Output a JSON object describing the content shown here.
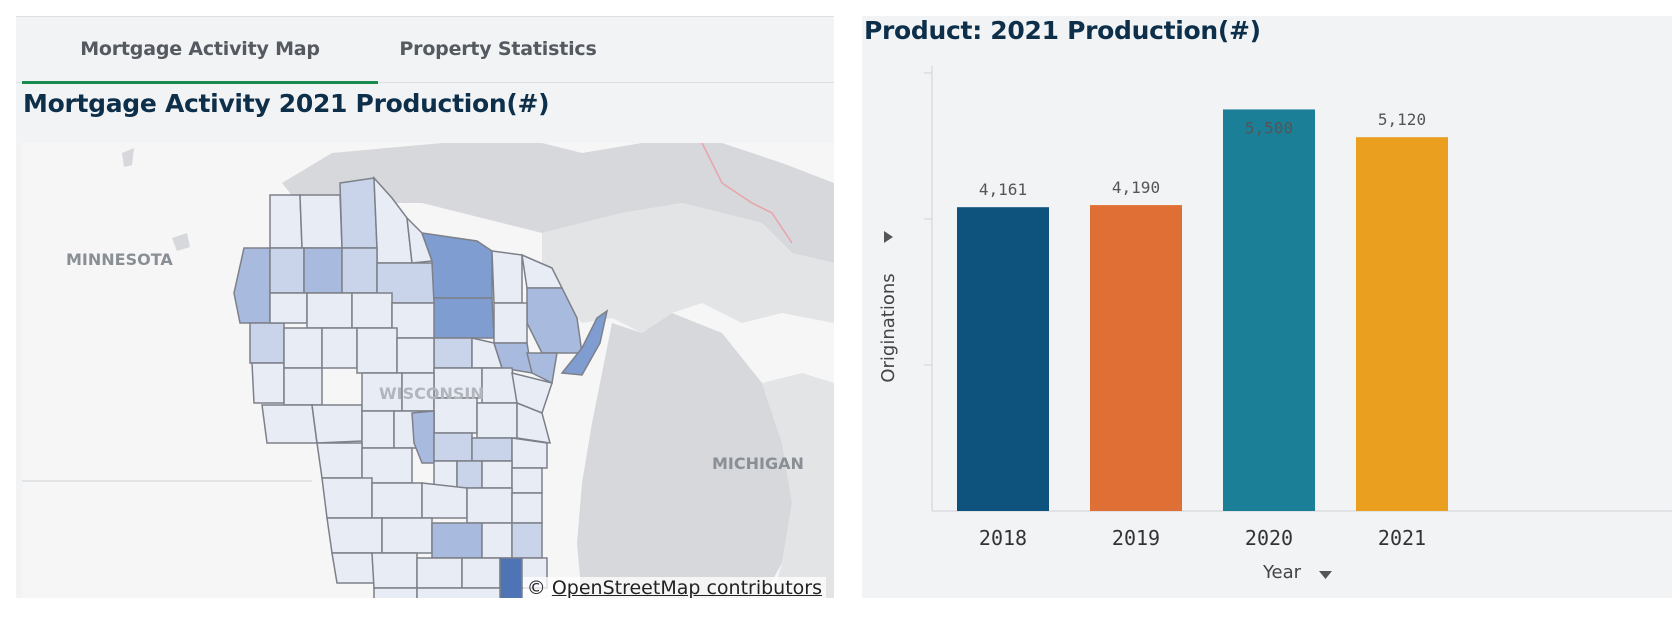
{
  "tabs": [
    {
      "label": "Mortgage Activity Map",
      "active": true
    },
    {
      "label": "Property Statistics",
      "active": false
    }
  ],
  "map": {
    "title": "Mortgage Activity 2021 Production(#)",
    "labels": {
      "minnesota": "MINNESOTA",
      "wisconsin": "WISCONSIN",
      "michigan": "MICHIGAN"
    },
    "credit": {
      "symbol": "©",
      "link_text": "OpenStreetMap contributors"
    },
    "colors": {
      "low": "#e8ecf5",
      "mid_low": "#c9d4ea",
      "mid": "#a8bbdf",
      "high": "#7f9dd0",
      "max": "#4f74b6"
    }
  },
  "chart": {
    "title": "Product: 2021 Production(#)",
    "sort_icon": "triangle-right-icon",
    "year_sort_icon": "chevron-down-icon"
  },
  "chart_data": {
    "type": "bar",
    "categories": [
      "2018",
      "2019",
      "2020",
      "2021"
    ],
    "values": [
      4161,
      4190,
      5500,
      5120
    ],
    "value_labels": [
      "4,161",
      "4,190",
      "5,500",
      "5,120"
    ],
    "colors": [
      "#0e527e",
      "#e06f35",
      "#1b7f97",
      "#ea9f1f"
    ],
    "title": "Product: 2021 Production(#)",
    "xlabel": "Year",
    "ylabel": "Originations",
    "ylim": [
      0,
      6000
    ],
    "grid": false
  }
}
